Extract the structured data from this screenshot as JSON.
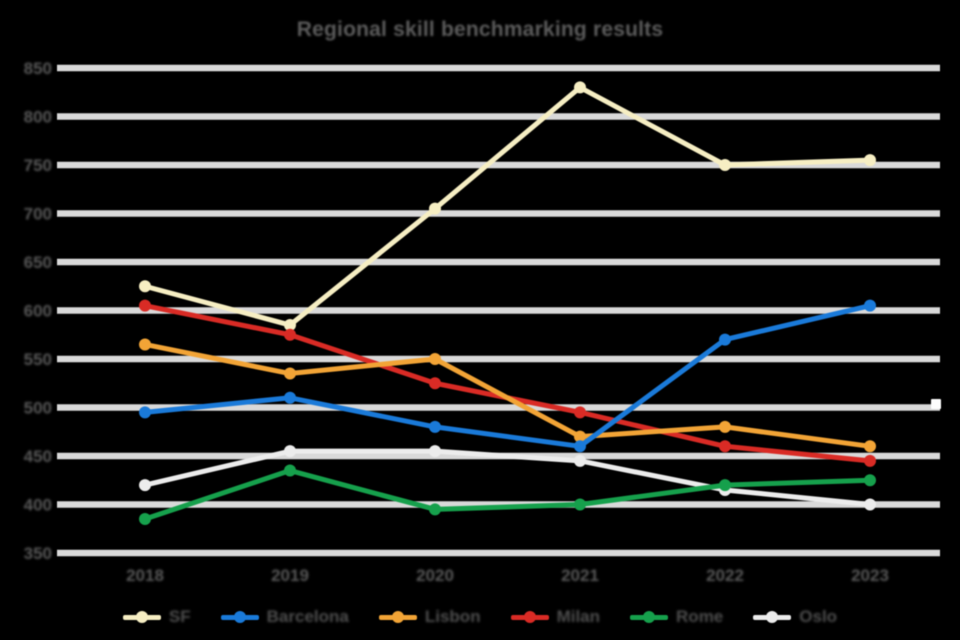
{
  "title": "Regional skill benchmarking results",
  "background": "#000000",
  "text_color": "#585858",
  "gridline_color": "#d9d9d9",
  "legend": {
    "items": [
      {
        "label": "SF",
        "color": "#f6eec3"
      },
      {
        "label": "Barcelona",
        "color": "#1a7ad9"
      },
      {
        "label": "Lisbon",
        "color": "#f2a436"
      },
      {
        "label": "Milan",
        "color": "#d92b25"
      },
      {
        "label": "Rome",
        "color": "#16a04c"
      },
      {
        "label": "Oslo",
        "color": "#ececec"
      }
    ]
  },
  "chart_data": {
    "type": "line",
    "title": "Regional skill benchmarking results",
    "x": [
      "2018",
      "2019",
      "2020",
      "2021",
      "2022",
      "2023"
    ],
    "series": [
      {
        "name": "SF",
        "color": "#f6eec3",
        "values": [
          625,
          585,
          705,
          830,
          750,
          755
        ]
      },
      {
        "name": "Barcelona",
        "color": "#1a7ad9",
        "values": [
          495,
          510,
          480,
          460,
          570,
          605
        ]
      },
      {
        "name": "Lisbon",
        "color": "#f2a436",
        "values": [
          565,
          535,
          550,
          470,
          480,
          460
        ]
      },
      {
        "name": "Milan",
        "color": "#d92b25",
        "values": [
          605,
          575,
          525,
          495,
          460,
          445
        ]
      },
      {
        "name": "Rome",
        "color": "#16a04c",
        "values": [
          385,
          435,
          395,
          400,
          420,
          425
        ]
      },
      {
        "name": "Oslo",
        "color": "#ececec",
        "values": [
          420,
          455,
          455,
          445,
          415,
          400
        ]
      }
    ],
    "ylim": [
      350,
      850
    ],
    "yticks": [
      850,
      800,
      750,
      700,
      650,
      600,
      550,
      500,
      450,
      400,
      350
    ],
    "grid": true,
    "legend_position": "bottom",
    "marker": "circle"
  }
}
